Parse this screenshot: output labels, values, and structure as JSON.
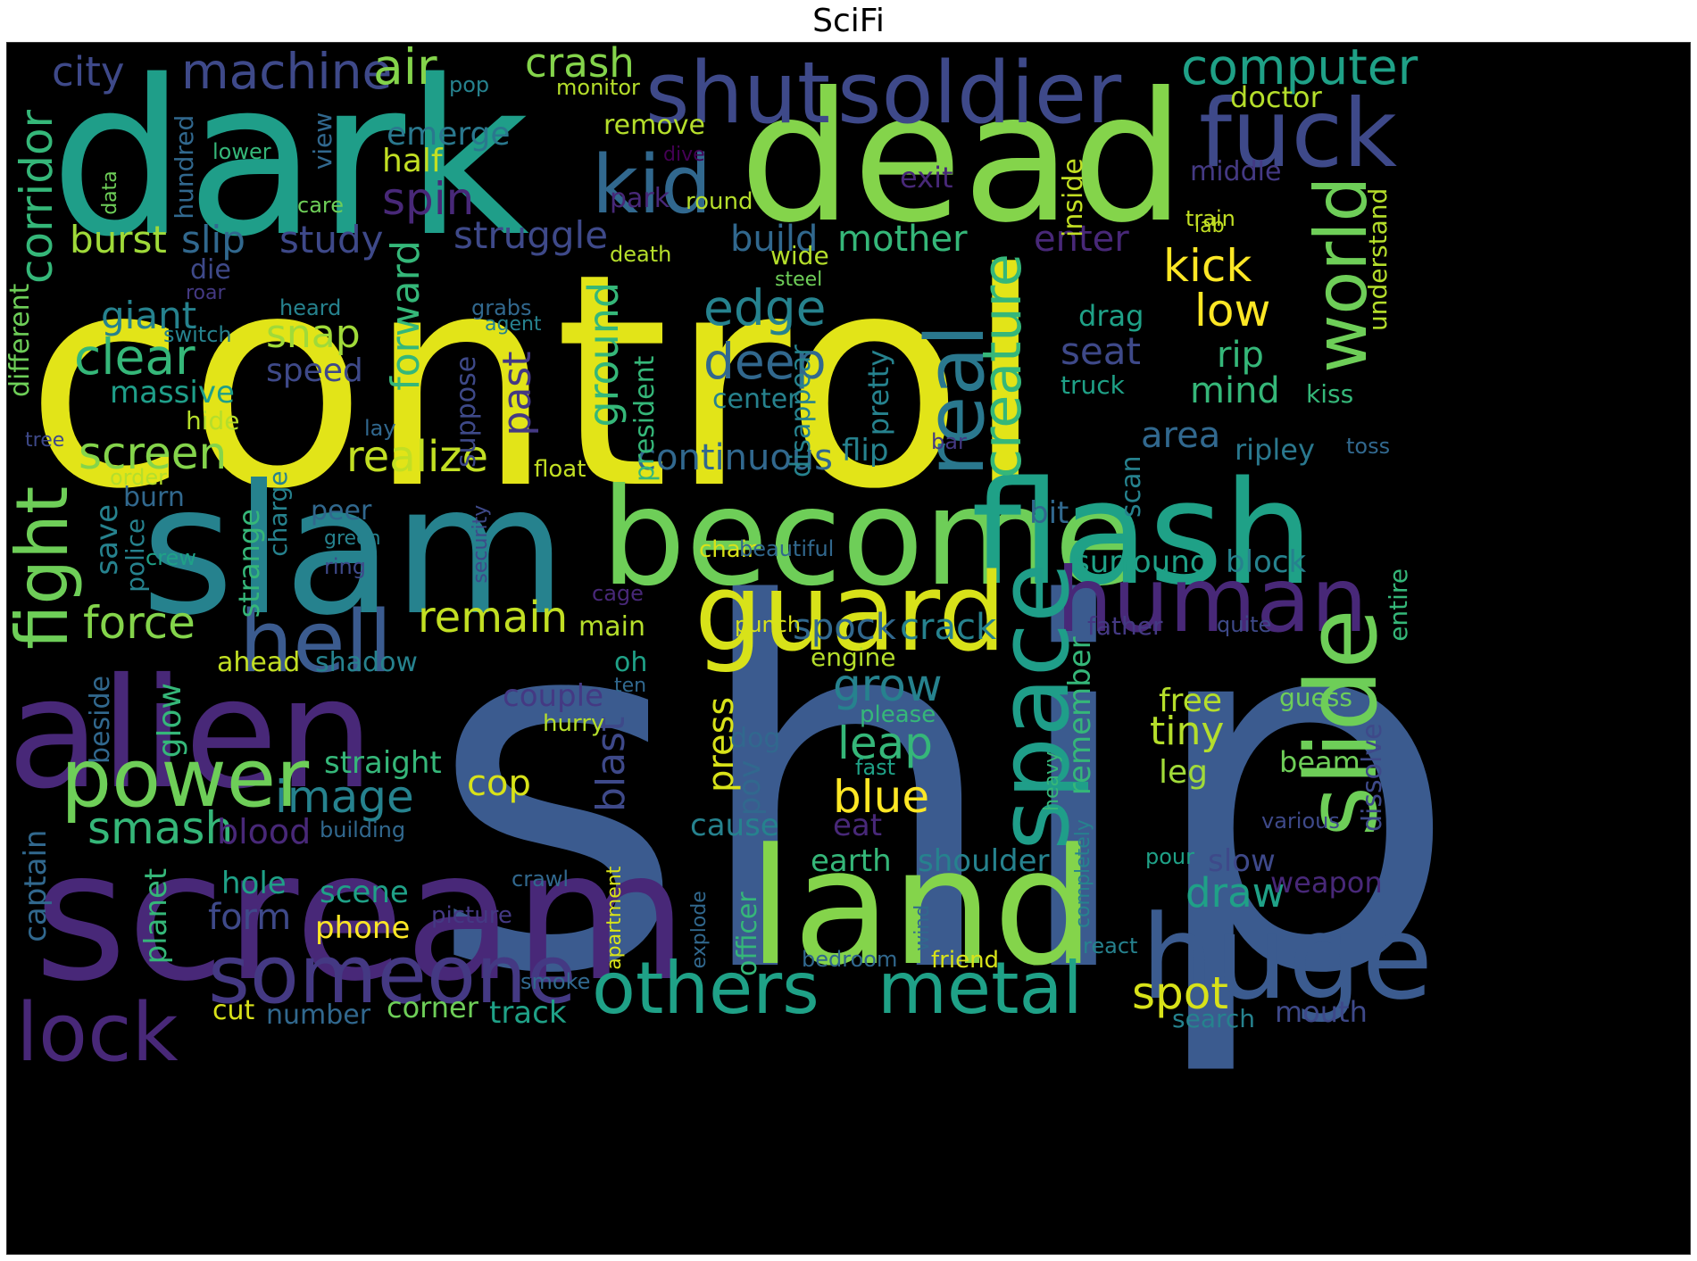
{
  "title": "SciFi",
  "palette": [
    "#fde725",
    "#b5de2b",
    "#6ece58",
    "#35b779",
    "#1f9e89",
    "#26828e",
    "#31688e",
    "#3e4989",
    "#482878",
    "#440154"
  ],
  "words": [
    {
      "text": "control",
      "color": "#e2e418"
    },
    {
      "text": "ship",
      "color": "#3b5b8f"
    },
    {
      "text": "dark",
      "color": "#1f9e89"
    },
    {
      "text": "dead",
      "color": "#84d44b"
    },
    {
      "text": "slam",
      "color": "#26828e"
    },
    {
      "text": "scream",
      "color": "#482878"
    },
    {
      "text": "alien",
      "color": "#482878"
    },
    {
      "text": "become",
      "color": "#6ece58"
    },
    {
      "text": "flash",
      "color": "#1fa187"
    },
    {
      "text": "land",
      "color": "#84d44b"
    },
    {
      "text": "huge",
      "color": "#3b5b8f"
    },
    {
      "text": "guard",
      "color": "#d8e219"
    },
    {
      "text": "shut",
      "color": "#3e4989"
    },
    {
      "text": "soldier",
      "color": "#3e4989"
    },
    {
      "text": "fuck",
      "color": "#3e4989"
    },
    {
      "text": "kid",
      "color": "#31688e"
    },
    {
      "text": "hell",
      "color": "#3b5b8f"
    },
    {
      "text": "human",
      "color": "#482878"
    },
    {
      "text": "slide",
      "color": "#6ece58"
    },
    {
      "text": "space",
      "color": "#1f9e89"
    },
    {
      "text": "power",
      "color": "#6ece58"
    },
    {
      "text": "someone",
      "color": "#443983"
    },
    {
      "text": "others",
      "color": "#1fa187"
    },
    {
      "text": "metal",
      "color": "#1fa187"
    },
    {
      "text": "lock",
      "color": "#482878"
    },
    {
      "text": "fight",
      "color": "#6ece58"
    },
    {
      "text": "real",
      "color": "#2a788e"
    },
    {
      "text": "world",
      "color": "#6ece58"
    },
    {
      "text": "creature",
      "color": "#35b779"
    },
    {
      "text": "computer",
      "color": "#1fa187"
    },
    {
      "text": "machine",
      "color": "#3e4989"
    },
    {
      "text": "air",
      "color": "#84d44b"
    },
    {
      "text": "crash",
      "color": "#84d44b"
    },
    {
      "text": "city",
      "color": "#3e4989"
    },
    {
      "text": "corridor",
      "color": "#35b779"
    },
    {
      "text": "emerge",
      "color": "#2a788e"
    },
    {
      "text": "half",
      "color": "#c2df23"
    },
    {
      "text": "spin",
      "color": "#482878"
    },
    {
      "text": "burst",
      "color": "#a0da39"
    },
    {
      "text": "slip",
      "color": "#31688e"
    },
    {
      "text": "study",
      "color": "#3e4989"
    },
    {
      "text": "struggle",
      "color": "#3e4989"
    },
    {
      "text": "build",
      "color": "#31688e"
    },
    {
      "text": "mother",
      "color": "#35b779"
    },
    {
      "text": "enter",
      "color": "#482878"
    },
    {
      "text": "kick",
      "color": "#fde725"
    },
    {
      "text": "low",
      "color": "#fde725"
    },
    {
      "text": "rip",
      "color": "#35b779"
    },
    {
      "text": "mind",
      "color": "#35b779"
    },
    {
      "text": "edge",
      "color": "#26828e"
    },
    {
      "text": "deep",
      "color": "#31688e"
    },
    {
      "text": "giant",
      "color": "#26828e"
    },
    {
      "text": "clear",
      "color": "#35b779"
    },
    {
      "text": "snap",
      "color": "#a0da39"
    },
    {
      "text": "speed",
      "color": "#3e4989"
    },
    {
      "text": "massive",
      "color": "#1f9e89"
    },
    {
      "text": "forward",
      "color": "#35b779"
    },
    {
      "text": "ground",
      "color": "#35b779"
    },
    {
      "text": "past",
      "color": "#443983"
    },
    {
      "text": "screen",
      "color": "#84d44b"
    },
    {
      "text": "realize",
      "color": "#c2df23"
    },
    {
      "text": "continuous",
      "color": "#31688e"
    },
    {
      "text": "flip",
      "color": "#26828e"
    },
    {
      "text": "area",
      "color": "#31688e"
    },
    {
      "text": "ripley",
      "color": "#2a788e"
    },
    {
      "text": "force",
      "color": "#84d44b"
    },
    {
      "text": "remain",
      "color": "#c2df23"
    },
    {
      "text": "spock",
      "color": "#31688e"
    },
    {
      "text": "crack",
      "color": "#26828e"
    },
    {
      "text": "surround",
      "color": "#1fa187"
    },
    {
      "text": "block",
      "color": "#26828e"
    },
    {
      "text": "seat",
      "color": "#3e4989"
    },
    {
      "text": "grow",
      "color": "#26828e"
    },
    {
      "text": "leap",
      "color": "#35b779"
    },
    {
      "text": "blue",
      "color": "#fde725"
    },
    {
      "text": "press",
      "color": "#d8e219"
    },
    {
      "text": "blast",
      "color": "#3e4989"
    },
    {
      "text": "cop",
      "color": "#d8e219"
    },
    {
      "text": "image",
      "color": "#26828e"
    },
    {
      "text": "smash",
      "color": "#35b779"
    },
    {
      "text": "blood",
      "color": "#482878"
    },
    {
      "text": "draw",
      "color": "#1fa187"
    },
    {
      "text": "tiny",
      "color": "#b5de2b"
    },
    {
      "text": "free",
      "color": "#b5de2b"
    },
    {
      "text": "leg",
      "color": "#a0da39"
    },
    {
      "text": "spot",
      "color": "#d8e219"
    },
    {
      "text": "earth",
      "color": "#35b779"
    },
    {
      "text": "shoulder",
      "color": "#26828e"
    },
    {
      "text": "slow",
      "color": "#3e4989"
    },
    {
      "text": "weapon",
      "color": "#482878"
    },
    {
      "text": "doctor",
      "color": "#b5de2b"
    },
    {
      "text": "middle",
      "color": "#443983"
    },
    {
      "text": "lab",
      "color": "#c2df23"
    },
    {
      "text": "train",
      "color": "#c2df23"
    },
    {
      "text": "understand",
      "color": "#b5de2b"
    },
    {
      "text": "kiss",
      "color": "#35b779"
    },
    {
      "text": "toss",
      "color": "#31688e"
    },
    {
      "text": "guess",
      "color": "#6ece58"
    },
    {
      "text": "beam",
      "color": "#6ece58"
    },
    {
      "text": "dissolve",
      "color": "#3e4989"
    },
    {
      "text": "entire",
      "color": "#35b779"
    },
    {
      "text": "quite",
      "color": "#3e4989"
    },
    {
      "text": "father",
      "color": "#443983"
    },
    {
      "text": "various",
      "color": "#3e4989"
    },
    {
      "text": "pour",
      "color": "#1fa187"
    },
    {
      "text": "search",
      "color": "#26828e"
    },
    {
      "text": "mouth",
      "color": "#3e4989"
    },
    {
      "text": "react",
      "color": "#26828e"
    },
    {
      "text": "friend",
      "color": "#d8e219"
    },
    {
      "text": "bedroom",
      "color": "#31688e"
    },
    {
      "text": "track",
      "color": "#1fa187"
    },
    {
      "text": "corner",
      "color": "#6ece58"
    },
    {
      "text": "number",
      "color": "#31688e"
    },
    {
      "text": "cut",
      "color": "#d8e219"
    },
    {
      "text": "smoke",
      "color": "#31688e"
    },
    {
      "text": "phone",
      "color": "#fde725"
    },
    {
      "text": "picture",
      "color": "#443983"
    },
    {
      "text": "crawl",
      "color": "#31688e"
    },
    {
      "text": "scene",
      "color": "#1fa187"
    },
    {
      "text": "hole",
      "color": "#1fa187"
    },
    {
      "text": "form",
      "color": "#3e4989"
    },
    {
      "text": "planet",
      "color": "#35b779"
    },
    {
      "text": "captain",
      "color": "#31688e"
    },
    {
      "text": "building",
      "color": "#31688e"
    },
    {
      "text": "straight",
      "color": "#35b779"
    },
    {
      "text": "cause",
      "color": "#26828e"
    },
    {
      "text": "eat",
      "color": "#482878"
    },
    {
      "text": "dog",
      "color": "#31688e"
    },
    {
      "text": "pov",
      "color": "#31688e"
    },
    {
      "text": "officer",
      "color": "#35b779"
    },
    {
      "text": "explode",
      "color": "#31688e"
    },
    {
      "text": "apartment",
      "color": "#d8e219"
    },
    {
      "text": "wind",
      "color": "#31688e"
    },
    {
      "text": "completely",
      "color": "#26828e"
    },
    {
      "text": "heavy",
      "color": "#35b779"
    },
    {
      "text": "fast",
      "color": "#1fa187"
    },
    {
      "text": "please",
      "color": "#35b779"
    },
    {
      "text": "engine",
      "color": "#b5de2b"
    },
    {
      "text": "remember",
      "color": "#35b779"
    },
    {
      "text": "oh",
      "color": "#1fa187"
    },
    {
      "text": "ten",
      "color": "#31688e"
    },
    {
      "text": "hurry",
      "color": "#b5de2b"
    },
    {
      "text": "couple",
      "color": "#443983"
    },
    {
      "text": "main",
      "color": "#b5de2b"
    },
    {
      "text": "punch",
      "color": "#d8e219"
    },
    {
      "text": "cage",
      "color": "#482878"
    },
    {
      "text": "chair",
      "color": "#d8e219"
    },
    {
      "text": "beautiful",
      "color": "#31688e"
    },
    {
      "text": "bit",
      "color": "#31688e"
    },
    {
      "text": "scan",
      "color": "#26828e"
    },
    {
      "text": "float",
      "color": "#c2df23"
    },
    {
      "text": "bar",
      "color": "#443983"
    },
    {
      "text": "pretty",
      "color": "#26828e"
    },
    {
      "text": "disappear",
      "color": "#26828e"
    },
    {
      "text": "center",
      "color": "#26828e"
    },
    {
      "text": "truck",
      "color": "#1fa187"
    },
    {
      "text": "drag",
      "color": "#1fa187"
    },
    {
      "text": "president",
      "color": "#35b779"
    },
    {
      "text": "steel",
      "color": "#6ece58"
    },
    {
      "text": "wide",
      "color": "#b5de2b"
    },
    {
      "text": "death",
      "color": "#b5de2b"
    },
    {
      "text": "inside",
      "color": "#c2df23"
    },
    {
      "text": "exit",
      "color": "#482878"
    },
    {
      "text": "park",
      "color": "#482878"
    },
    {
      "text": "round",
      "color": "#b5de2b"
    },
    {
      "text": "dive",
      "color": "#440154"
    },
    {
      "text": "remove",
      "color": "#b5de2b"
    },
    {
      "text": "monitor",
      "color": "#b5de2b"
    },
    {
      "text": "pop",
      "color": "#26828e"
    },
    {
      "text": "lower",
      "color": "#35b779"
    },
    {
      "text": "care",
      "color": "#6ece58"
    },
    {
      "text": "view",
      "color": "#31688e"
    },
    {
      "text": "hundred",
      "color": "#31688e"
    },
    {
      "text": "data",
      "color": "#6ece58"
    },
    {
      "text": "die",
      "color": "#3e4989"
    },
    {
      "text": "roar",
      "color": "#443983"
    },
    {
      "text": "heard",
      "color": "#26828e"
    },
    {
      "text": "switch",
      "color": "#26828e"
    },
    {
      "text": "grabs",
      "color": "#31688e"
    },
    {
      "text": "agent",
      "color": "#26828e"
    },
    {
      "text": "suppose",
      "color": "#3e4989"
    },
    {
      "text": "different",
      "color": "#6ece58"
    },
    {
      "text": "hide",
      "color": "#b5de2b"
    },
    {
      "text": "lay",
      "color": "#31688e"
    },
    {
      "text": "tree",
      "color": "#3e4989"
    },
    {
      "text": "order",
      "color": "#b5de2b"
    },
    {
      "text": "burn",
      "color": "#31688e"
    },
    {
      "text": "save",
      "color": "#26828e"
    },
    {
      "text": "police",
      "color": "#26828e"
    },
    {
      "text": "strange",
      "color": "#35b779"
    },
    {
      "text": "charge",
      "color": "#26828e"
    },
    {
      "text": "peer",
      "color": "#31688e"
    },
    {
      "text": "green",
      "color": "#26828e"
    },
    {
      "text": "security",
      "color": "#3e4989"
    },
    {
      "text": "ring",
      "color": "#3e4989"
    },
    {
      "text": "crew",
      "color": "#1fa187"
    },
    {
      "text": "ahead",
      "color": "#c2df23"
    },
    {
      "text": "shadow",
      "color": "#26828e"
    },
    {
      "text": "beside",
      "color": "#31688e"
    },
    {
      "text": "glow",
      "color": "#35b779"
    }
  ]
}
